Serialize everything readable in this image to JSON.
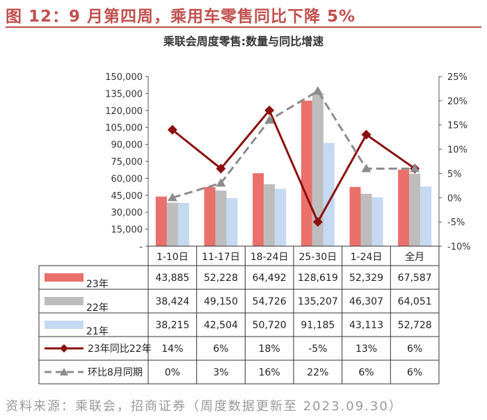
{
  "figure_title": "图 12：9 月第四周，乘用车零售同比下降 5%",
  "source": "资料来源：乘联会，招商证券（周度数据更新至 2023.09.30）",
  "chart_data": {
    "type": "bar",
    "title": "乘联会周度零售:数量与同比增速",
    "categories": [
      "1-10日",
      "11-17日",
      "18-24日",
      "25-30日",
      "1-24日",
      "全月"
    ],
    "left_axis": {
      "min": 0,
      "max": 150000,
      "ticks": [
        "-",
        "15,000",
        "30,000",
        "45,000",
        "60,000",
        "75,000",
        "90,000",
        "105,000",
        "120,000",
        "135,000",
        "150,000"
      ]
    },
    "right_axis": {
      "min": -10,
      "max": 25,
      "ticks": [
        "-10%",
        "-5%",
        "0%",
        "5%",
        "10%",
        "15%",
        "20%",
        "25%"
      ]
    },
    "series": [
      {
        "name": "23年",
        "kind": "bar",
        "color": "#e9706b",
        "values": [
          43885,
          52228,
          64492,
          128619,
          52329,
          67587
        ],
        "labels": [
          "43,885",
          "52,228",
          "64,492",
          "128,619",
          "52,329",
          "67,587"
        ]
      },
      {
        "name": "22年",
        "kind": "bar",
        "color": "#bdbdbd",
        "values": [
          38424,
          49150,
          54726,
          135207,
          46307,
          64051
        ],
        "labels": [
          "38,424",
          "49,150",
          "54,726",
          "135,207",
          "46,307",
          "64,051"
        ]
      },
      {
        "name": "21年",
        "kind": "bar",
        "color": "#c5d9f1",
        "values": [
          38215,
          42504,
          50720,
          91185,
          43113,
          52728
        ],
        "labels": [
          "38,215",
          "42,504",
          "50,720",
          "91,185",
          "43,113",
          "52,728"
        ]
      },
      {
        "name": "23年同比22年",
        "kind": "line",
        "color": "#8b0e0e",
        "values": [
          14,
          6,
          18,
          -5,
          13,
          6
        ],
        "labels": [
          "14%",
          "6%",
          "18%",
          "-5%",
          "13%",
          "6%"
        ]
      },
      {
        "name": "环比8月同期",
        "kind": "dashed-line",
        "color": "#8c8c8c",
        "values": [
          0,
          3,
          16,
          22,
          6,
          6
        ],
        "labels": [
          "0%",
          "3%",
          "16%",
          "22%",
          "6%",
          "6%"
        ]
      }
    ],
    "grid": false
  }
}
